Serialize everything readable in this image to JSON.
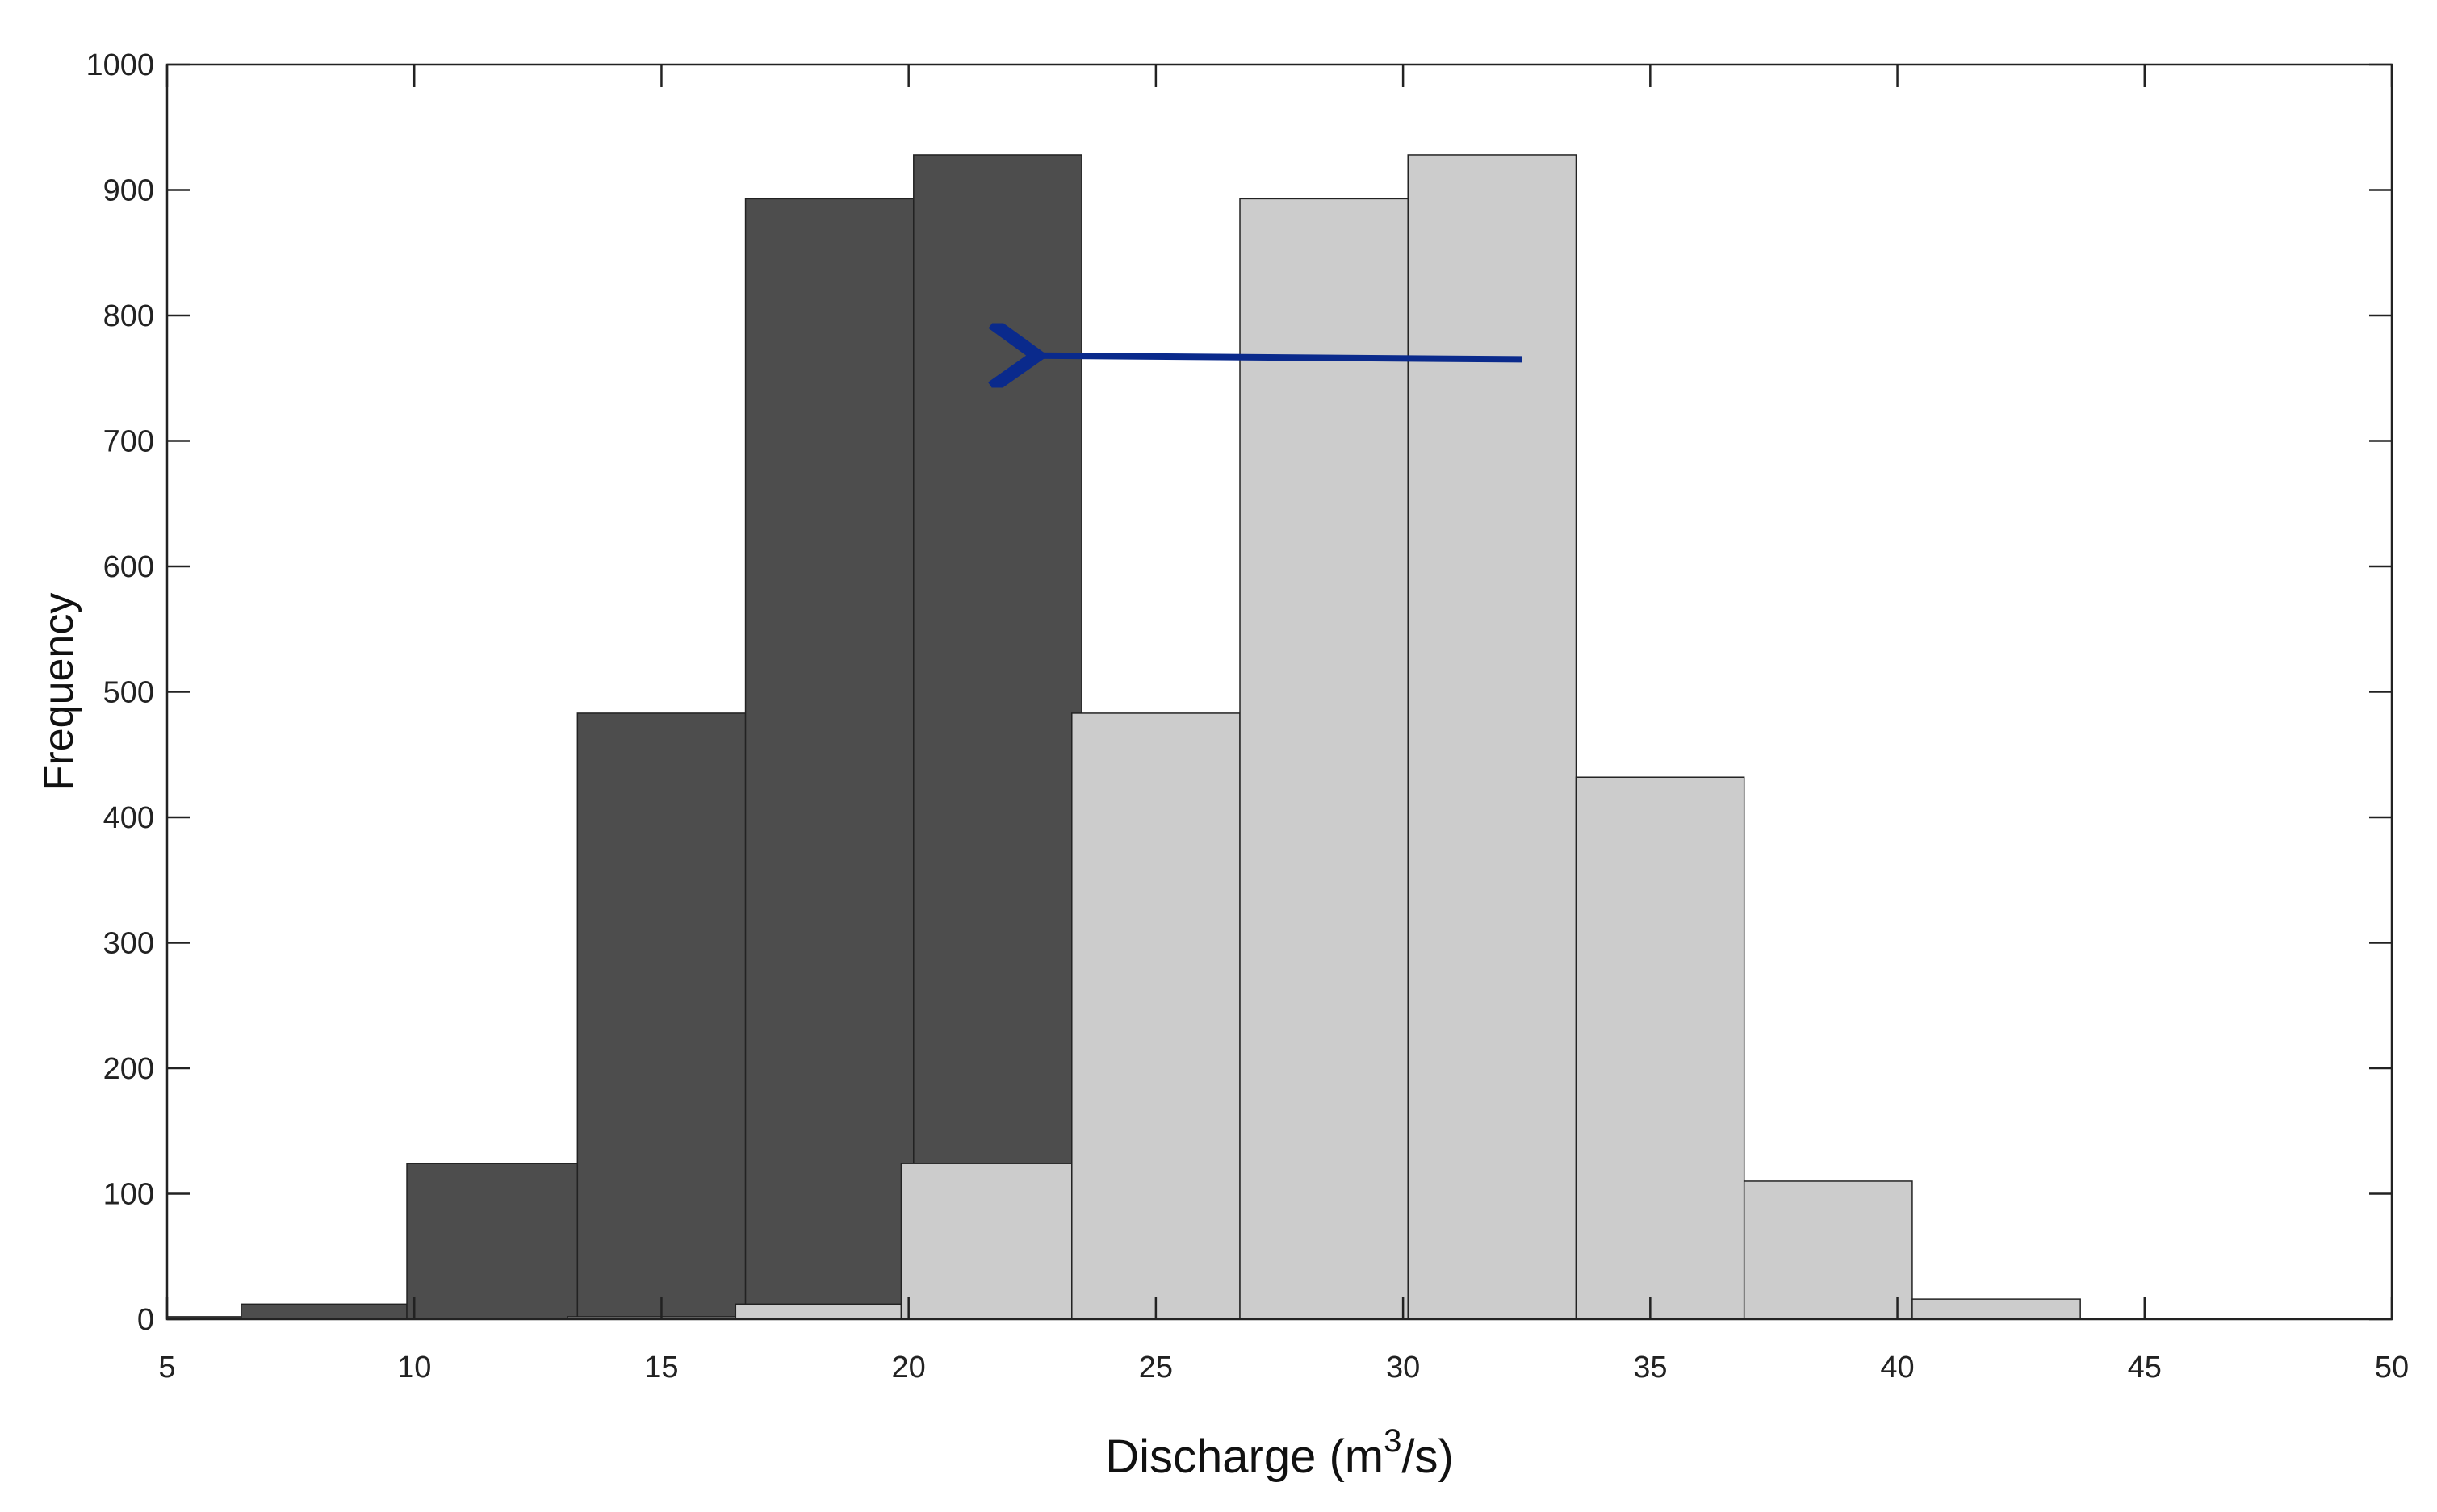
{
  "chart_data": {
    "type": "bar",
    "xlabel": {
      "base": "Discharge (m",
      "superscript": "3",
      "tail": "/s)"
    },
    "ylabel": "Frequency",
    "xlim": [
      5,
      50
    ],
    "ylim": [
      0,
      1000
    ],
    "xticks": [
      5,
      10,
      15,
      20,
      25,
      30,
      35,
      40,
      45,
      50
    ],
    "yticks": [
      0,
      100,
      200,
      300,
      400,
      500,
      600,
      700,
      800,
      900,
      1000
    ],
    "grid": false,
    "legend": "none",
    "series": [
      {
        "color": "#4d4d4d",
        "bins": [
          {
            "x0": 5.0,
            "x1": 6.5,
            "value": 2
          },
          {
            "x0": 6.5,
            "x1": 9.85,
            "value": 12
          },
          {
            "x0": 9.85,
            "x1": 13.3,
            "value": 124
          },
          {
            "x0": 13.3,
            "x1": 16.7,
            "value": 483
          },
          {
            "x0": 16.7,
            "x1": 20.1,
            "value": 893
          },
          {
            "x0": 20.1,
            "x1": 23.5,
            "value": 928
          }
        ]
      },
      {
        "color": "#cccccc",
        "bins": [
          {
            "x0": 13.1,
            "x1": 16.5,
            "value": 2
          },
          {
            "x0": 16.5,
            "x1": 19.85,
            "value": 12
          },
          {
            "x0": 19.85,
            "x1": 23.3,
            "value": 124
          },
          {
            "x0": 23.3,
            "x1": 26.7,
            "value": 483
          },
          {
            "x0": 26.7,
            "x1": 30.1,
            "value": 893
          },
          {
            "x0": 30.1,
            "x1": 33.5,
            "value": 928
          },
          {
            "x0": 33.5,
            "x1": 36.9,
            "value": 432
          },
          {
            "x0": 36.9,
            "x1": 40.3,
            "value": 110
          },
          {
            "x0": 40.3,
            "x1": 43.7,
            "value": 16
          }
        ]
      }
    ],
    "annotations": [
      {
        "type": "arrow",
        "from": [
          32.4,
          765
        ],
        "to": [
          22.6,
          768
        ],
        "color": "#0a2a8c"
      }
    ]
  }
}
